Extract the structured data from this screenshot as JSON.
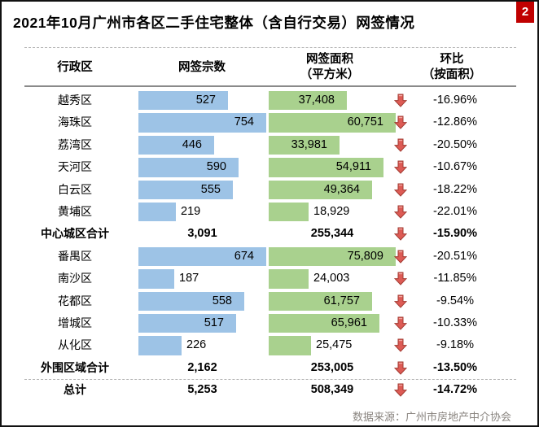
{
  "badge": {
    "label": "2",
    "color": "#C00000"
  },
  "title": "2021年10月广州市各区二手住宅整体（含自行交易）网签情况",
  "header": {
    "district": "行政区",
    "deals": "网签宗数",
    "area_line1": "网签面积",
    "area_line2": "（平方米）",
    "mom_line1": "环比",
    "mom_line2": "（按面积）"
  },
  "footer": {
    "source": "数据来源：广州市房地产中介协会"
  },
  "colors": {
    "bar_blue": "#9DC3E6",
    "bar_green": "#A9D18E",
    "arrow_fill": "#DD5B55",
    "arrow_highlight": "#F3A9A3",
    "arrow_stroke": "#A23B32",
    "badge_red": "#C00000",
    "footer_text": "#8A8580"
  },
  "chart_data": {
    "type": "table",
    "title": "2021年10月广州市各区二手住宅整体（含自行交易）网签情况",
    "columns": [
      "行政区",
      "网签宗数",
      "网签面积（平方米）",
      "环比（按面积）"
    ],
    "layout_hints": {
      "deals_bars": "blue data bars, scaled to max value within each section",
      "area_bars": "green data bars, scaled to max value within each section",
      "trend_icons": "red down arrow on every row"
    },
    "rows": [
      {
        "name": "越秀区",
        "deals": 527,
        "deals_text": "527",
        "area": 37408,
        "area_text": "37,408",
        "pct": "-16.96%",
        "trend": "down",
        "kind": "district",
        "section": "center"
      },
      {
        "name": "海珠区",
        "deals": 754,
        "deals_text": "754",
        "area": 60751,
        "area_text": "60,751",
        "pct": "-12.86%",
        "trend": "down",
        "kind": "district",
        "section": "center"
      },
      {
        "name": "荔湾区",
        "deals": 446,
        "deals_text": "446",
        "area": 33981,
        "area_text": "33,981",
        "pct": "-20.50%",
        "trend": "down",
        "kind": "district",
        "section": "center"
      },
      {
        "name": "天河区",
        "deals": 590,
        "deals_text": "590",
        "area": 54911,
        "area_text": "54,911",
        "pct": "-10.67%",
        "trend": "down",
        "kind": "district",
        "section": "center"
      },
      {
        "name": "白云区",
        "deals": 555,
        "deals_text": "555",
        "area": 49364,
        "area_text": "49,364",
        "pct": "-18.22%",
        "trend": "down",
        "kind": "district",
        "section": "center"
      },
      {
        "name": "黄埔区",
        "deals": 219,
        "deals_text": "219",
        "area": 18929,
        "area_text": "18,929",
        "pct": "-22.01%",
        "trend": "down",
        "kind": "district",
        "section": "center"
      },
      {
        "name": "中心城区合计",
        "deals": 3091,
        "deals_text": "3,091",
        "area": 255344,
        "area_text": "255,344",
        "pct": "-15.90%",
        "trend": "down",
        "kind": "subtotal",
        "section": "center"
      },
      {
        "name": "番禺区",
        "deals": 674,
        "deals_text": "674",
        "area": 75809,
        "area_text": "75,809",
        "pct": "-20.51%",
        "trend": "down",
        "kind": "district",
        "section": "outer"
      },
      {
        "name": "南沙区",
        "deals": 187,
        "deals_text": "187",
        "area": 24003,
        "area_text": "24,003",
        "pct": "-11.85%",
        "trend": "down",
        "kind": "district",
        "section": "outer"
      },
      {
        "name": "花都区",
        "deals": 558,
        "deals_text": "558",
        "area": 61757,
        "area_text": "61,757",
        "pct": "-9.54%",
        "trend": "down",
        "kind": "district",
        "section": "outer"
      },
      {
        "name": "增城区",
        "deals": 517,
        "deals_text": "517",
        "area": 65961,
        "area_text": "65,961",
        "pct": "-10.33%",
        "trend": "down",
        "kind": "district",
        "section": "outer"
      },
      {
        "name": "从化区",
        "deals": 226,
        "deals_text": "226",
        "area": 25475,
        "area_text": "25,475",
        "pct": "-9.18%",
        "trend": "down",
        "kind": "district",
        "section": "outer"
      },
      {
        "name": "外围区域合计",
        "deals": 2162,
        "deals_text": "2,162",
        "area": 253005,
        "area_text": "253,005",
        "pct": "-13.50%",
        "trend": "down",
        "kind": "subtotal",
        "section": "outer"
      },
      {
        "name": "总计",
        "deals": 5253,
        "deals_text": "5,253",
        "area": 508349,
        "area_text": "508,349",
        "pct": "-14.72%",
        "trend": "down",
        "kind": "grand",
        "section": "all"
      }
    ]
  }
}
